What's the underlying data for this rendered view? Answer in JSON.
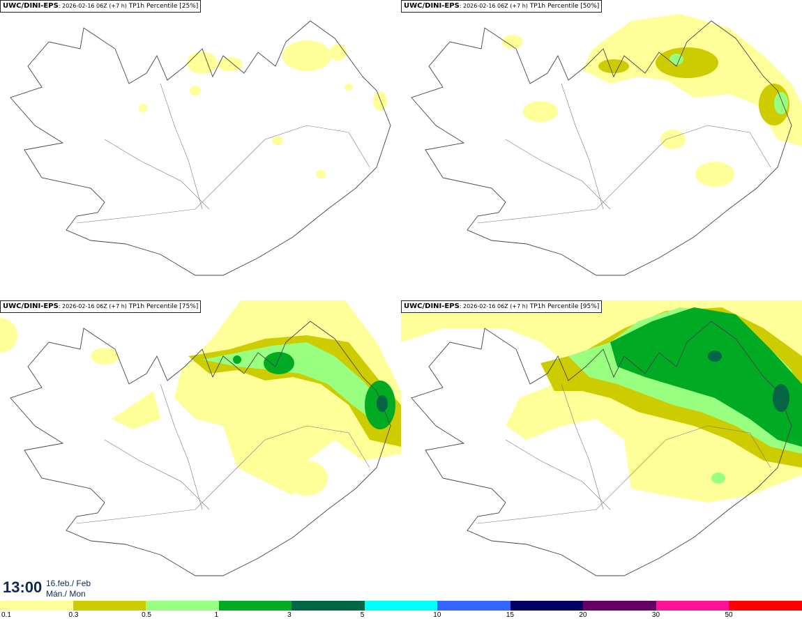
{
  "panels": [
    {
      "model": "UWC/DINI-EPS",
      "run": ": 2026-02-16 06Z (+7 h)",
      "field": " TP1h Percentile [25%]",
      "percentile": 25
    },
    {
      "model": "UWC/DINI-EPS",
      "run": ": 2026-02-16 06Z (+7 h)",
      "field": " TP1h Percentile [50%]",
      "percentile": 50
    },
    {
      "model": "UWC/DINI-EPS",
      "run": ": 2026-02-16 06Z (+7 h)",
      "field": " TP1h Percentile [75%]",
      "percentile": 75
    },
    {
      "model": "UWC/DINI-EPS",
      "run": ": 2026-02-16 06Z (+7 h)",
      "field": " TP1h Percentile [95%]",
      "percentile": 95
    }
  ],
  "valid_time": {
    "clock": "13:00",
    "date_line1": "16.feb./ Feb",
    "date_line2": "Mán./ Mon"
  },
  "legend": {
    "labels": [
      "0.1",
      "0.3",
      "0.5",
      "1",
      "3",
      "5",
      "10",
      "15",
      "20",
      "30",
      "50"
    ],
    "colors": [
      "#ffff99",
      "#cccc00",
      "#99ff80",
      "#00aa22",
      "#006644",
      "#00ffff",
      "#3366ff",
      "#000066",
      "#660066",
      "#ff1199",
      "#ff0000"
    ]
  }
}
